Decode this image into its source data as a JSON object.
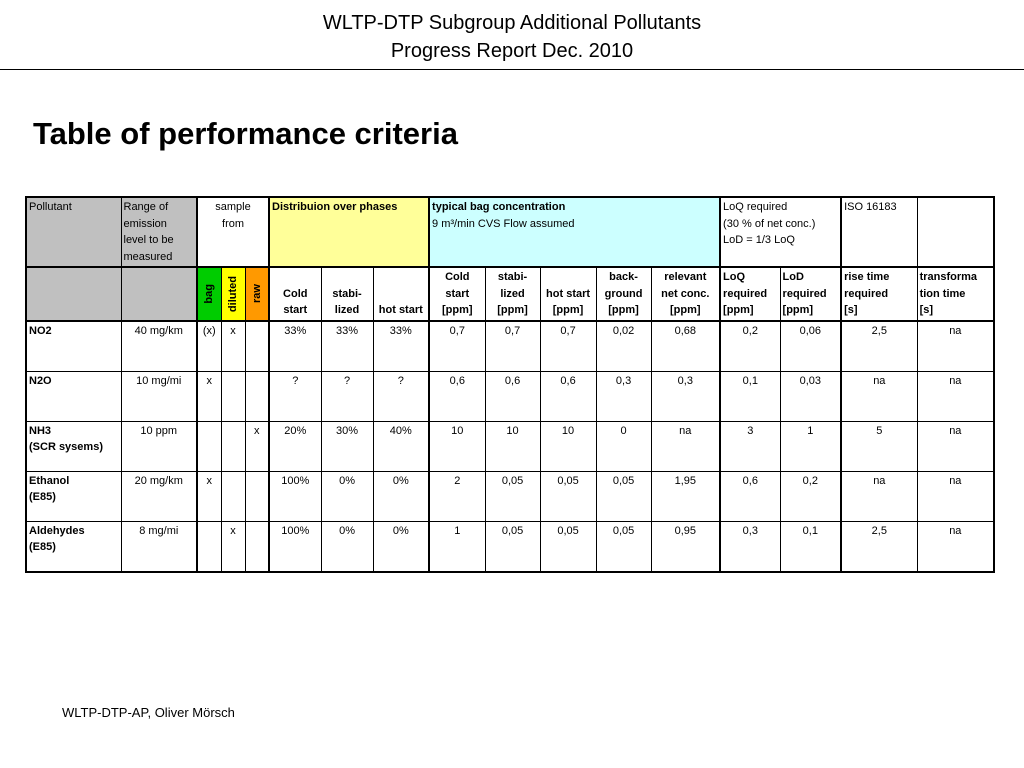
{
  "header": {
    "title_lines": [
      "WLTP-DTP Subgroup Additional Pollutants",
      "Progress Report Dec. 2010"
    ]
  },
  "heading": "Table of performance criteria",
  "table": {
    "group_headers": {
      "pollutant": [
        "Pollutant"
      ],
      "range": [
        "Range of",
        "emission",
        "level to be",
        "measured"
      ],
      "sample": [
        "sample",
        "from"
      ],
      "distribution": [
        "Distribuion over phases"
      ],
      "bag_concentration": [
        "typical bag concentration",
        "9 m³/min CVS Flow assumed"
      ],
      "loq": [
        "LoQ required",
        "(30 % of net conc.)",
        "LoD = 1/3 LoQ"
      ],
      "iso": [
        "ISO 16183"
      ]
    },
    "sub_headers": {
      "bag": "bag",
      "diluted": "diluted",
      "raw": "raw",
      "cold_start": [
        "Cold",
        "start"
      ],
      "stabilized": [
        "stabi-",
        "lized"
      ],
      "hot_start": [
        "hot start"
      ],
      "cold_start_ppm": [
        "Cold",
        "start",
        "[ppm]"
      ],
      "stabilized_ppm": [
        "stabi-",
        "lized",
        "[ppm]"
      ],
      "hot_start_ppm": [
        "hot start",
        "[ppm]"
      ],
      "background_ppm": [
        "back-",
        "ground",
        "[ppm]"
      ],
      "net_conc_ppm": [
        "relevant",
        "net conc.",
        "[ppm]"
      ],
      "loq_ppm": [
        "LoQ",
        "required",
        "[ppm]"
      ],
      "lod_ppm": [
        "LoD",
        "required",
        "[ppm]"
      ],
      "rise_time": [
        "rise time",
        "required",
        "[s]"
      ],
      "transformation_time": [
        "transforma",
        "tion time",
        "[s]"
      ]
    },
    "rows": [
      [
        [
          "NO2"
        ],
        "40 mg/km",
        "(x)",
        "x",
        null,
        "33%",
        "33%",
        "33%",
        "0,7",
        "0,7",
        "0,7",
        "0,02",
        "0,68",
        "0,2",
        "0,06",
        "2,5",
        "na"
      ],
      [
        [
          "N2O"
        ],
        "10 mg/mi",
        "x",
        null,
        null,
        "?",
        "?",
        "?",
        "0,6",
        "0,6",
        "0,6",
        "0,3",
        "0,3",
        "0,1",
        "0,03",
        "na",
        "na"
      ],
      [
        [
          "NH3",
          "(SCR sysems)"
        ],
        "10 ppm",
        null,
        null,
        "x",
        "20%",
        "30%",
        "40%",
        "10",
        "10",
        "10",
        "0",
        "na",
        "3",
        "1",
        "5",
        "na"
      ],
      [
        [
          "Ethanol",
          "(E85)"
        ],
        "20 mg/km",
        "x",
        null,
        null,
        "100%",
        "0%",
        "0%",
        "2",
        "0,05",
        "0,05",
        "0,05",
        "1,95",
        "0,6",
        "0,2",
        "na",
        "na"
      ],
      [
        [
          "Aldehydes",
          "(E85)"
        ],
        "8 mg/mi",
        null,
        "x",
        null,
        "100%",
        "0%",
        "0%",
        "1",
        "0,05",
        "0,05",
        "0,05",
        "0,95",
        "0,3",
        "0,1",
        "2,5",
        "na"
      ]
    ]
  },
  "footer": "WLTP-DTP-AP, Oliver Mörsch"
}
